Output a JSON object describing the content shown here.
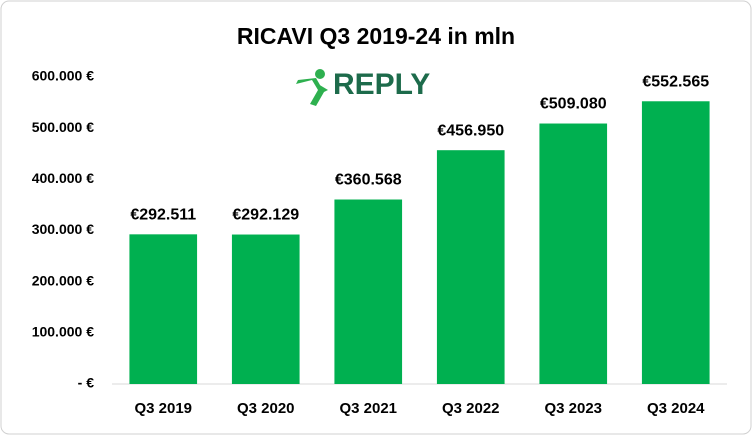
{
  "chart_data": {
    "type": "bar",
    "title": "RICAVI Q3 2019-24 in mln",
    "categories": [
      "Q3 2019",
      "Q3 2020",
      "Q3 2021",
      "Q3 2022",
      "Q3 2023",
      "Q3 2024"
    ],
    "values": [
      292511,
      292129,
      360568,
      456950,
      509080,
      552565
    ],
    "value_labels": [
      "€292.511",
      "€292.129",
      "€360.568",
      "€456.950",
      "€509.080",
      "€552.565"
    ],
    "color": "#00b050",
    "ylim": [
      0,
      600000
    ],
    "yticks": [
      {
        "value": 0,
        "label": "- €"
      },
      {
        "value": 100000,
        "label": "100.000 €"
      },
      {
        "value": 200000,
        "label": "200.000 €"
      },
      {
        "value": 300000,
        "label": "300.000 €"
      },
      {
        "value": 400000,
        "label": "400.000 €"
      },
      {
        "value": 500000,
        "label": "500.000 €"
      },
      {
        "value": 600000,
        "label": "600.000 €"
      }
    ],
    "grid": false
  },
  "logo_text": "REPLY"
}
